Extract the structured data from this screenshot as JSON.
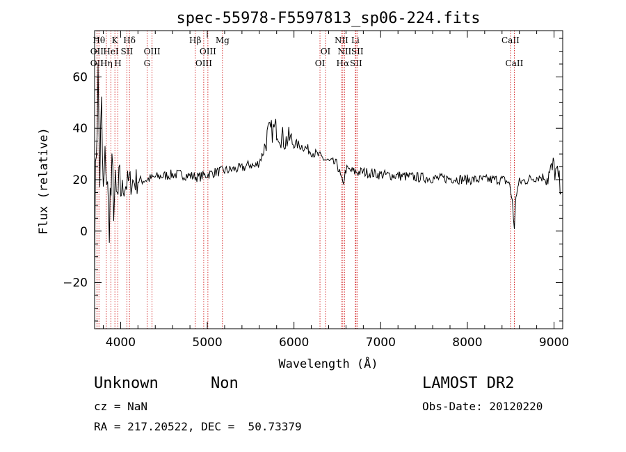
{
  "chart_data": {
    "type": "line",
    "title": "spec-55978-F5597813_sp06-224.fits",
    "xlabel": "Wavelength (Å)",
    "ylabel": "Flux (relative)",
    "xlim": [
      3700,
      9100
    ],
    "ylim": [
      -38,
      78
    ],
    "x_ticks": [
      4000,
      5000,
      6000,
      7000,
      8000,
      9000
    ],
    "y_ticks": [
      -20,
      0,
      20,
      40,
      60
    ],
    "y_tick_labels": [
      "−20",
      "0",
      "20",
      "40",
      "60"
    ],
    "color_spectrum": "#000000",
    "color_lines": "#cc0000",
    "spectrum": {
      "x": [
        3700,
        3720,
        3740,
        3760,
        3780,
        3800,
        3830,
        3860,
        3900,
        3950,
        4000,
        4050,
        4100,
        4200,
        4300,
        4400,
        4500,
        4600,
        4700,
        4800,
        4900,
        5000,
        5100,
        5200,
        5300,
        5400,
        5500,
        5550,
        5600,
        5650,
        5700,
        5750,
        5800,
        5850,
        5900,
        5950,
        6000,
        6100,
        6200,
        6300,
        6400,
        6500,
        6563,
        6600,
        6700,
        6800,
        6900,
        7000,
        7200,
        7400,
        7600,
        7800,
        8000,
        8200,
        8400,
        8480,
        8500,
        8520,
        8542,
        8560,
        8600,
        8700,
        8800,
        8900,
        8950,
        9000,
        9050,
        9080
      ],
      "y": [
        -5,
        35,
        58,
        22,
        45,
        12,
        30,
        5,
        18,
        10,
        15,
        18,
        19,
        19.5,
        20,
        21,
        21.5,
        22,
        22,
        21.5,
        21,
        22,
        23,
        23.5,
        24,
        24.5,
        26,
        25,
        27,
        31,
        38,
        39,
        40,
        37,
        35,
        36,
        34,
        33,
        31,
        29,
        27,
        26,
        18,
        24,
        23,
        23,
        22.5,
        22,
        21.5,
        21,
        20.5,
        20.5,
        20,
        20,
        20,
        19,
        15,
        12,
        0,
        14,
        19,
        20,
        21,
        21,
        22,
        25,
        20,
        15
      ]
    },
    "lines": [
      {
        "label": "OII",
        "wavelength": 3727,
        "row": 3
      },
      {
        "label": "Hθ",
        "wavelength": 3750,
        "row": 1
      },
      {
        "label": "OII",
        "wavelength": 3727,
        "row": 2
      },
      {
        "label": "Hη",
        "wavelength": 3835,
        "row": 3
      },
      {
        "label": "HeI",
        "wavelength": 3889,
        "row": 2
      },
      {
        "label": "K",
        "wavelength": 3934,
        "row": 1
      },
      {
        "label": "H",
        "wavelength": 3969,
        "row": 3
      },
      {
        "label": "SII",
        "wavelength": 4072,
        "row": 2
      },
      {
        "label": "Hδ",
        "wavelength": 4102,
        "row": 1
      },
      {
        "label": "G",
        "wavelength": 4305,
        "row": 3
      },
      {
        "label": "OIII",
        "wavelength": 4363,
        "row": 2
      },
      {
        "label": "Hβ",
        "wavelength": 4861,
        "row": 1
      },
      {
        "label": "OIII",
        "wavelength": 4959,
        "row": 3
      },
      {
        "label": "OIII",
        "wavelength": 5007,
        "row": 2
      },
      {
        "label": "Mg",
        "wavelength": 5175,
        "row": 1
      },
      {
        "label": "OI",
        "wavelength": 6300,
        "row": 3
      },
      {
        "label": "OI",
        "wavelength": 6364,
        "row": 2
      },
      {
        "label": "NII",
        "wavelength": 6548,
        "row": 1
      },
      {
        "label": "Hα",
        "wavelength": 6563,
        "row": 3
      },
      {
        "label": "NII",
        "wavelength": 6583,
        "row": 2
      },
      {
        "label": "Li",
        "wavelength": 6708,
        "row": 1
      },
      {
        "label": "SII",
        "wavelength": 6716,
        "row": 3
      },
      {
        "label": "SII",
        "wavelength": 6731,
        "row": 2
      },
      {
        "label": "CaII",
        "wavelength": 8498,
        "row": 1
      },
      {
        "label": "CaII",
        "wavelength": 8542,
        "row": 3
      }
    ]
  },
  "info": {
    "class": "Unknown",
    "subclass": "Non",
    "survey": "LAMOST DR2",
    "cz": "cz = NaN",
    "obs_date": "Obs-Date: 20120220",
    "coords": "RA = 217.20522, DEC =  50.73379"
  }
}
